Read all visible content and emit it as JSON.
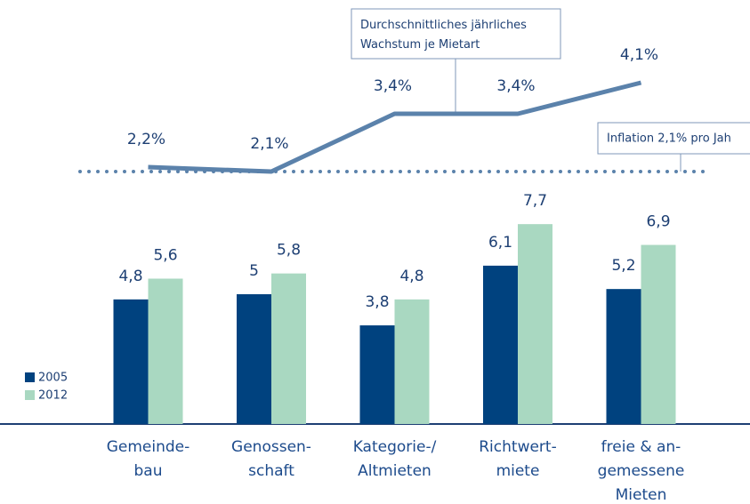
{
  "chart_data": {
    "type": "bar",
    "categories": [
      "Gemeinde-\nbau",
      "Genossen-\nschaft",
      "Kategorie-/\nAltmieten",
      "Richtwert-\nmiete",
      "freie & an-\ngemessene\nMieten"
    ],
    "series": [
      {
        "name": "2005",
        "color": "#00427f",
        "values": [
          4.8,
          5,
          3.8,
          6.1,
          5.2
        ],
        "value_labels": [
          "4,8",
          "5",
          "3,8",
          "6,1",
          "5,2"
        ]
      },
      {
        "name": "2012",
        "color": "#a9d8c1",
        "values": [
          5.6,
          5.8,
          4.8,
          7.7,
          6.9
        ],
        "value_labels": [
          "5,6",
          "5,8",
          "4,8",
          "7,7",
          "6,9"
        ]
      }
    ],
    "growth": {
      "name": "Durchschnittliches jährliches\nWachstum je Mietart",
      "color": "#5b82ab",
      "values": [
        2.2,
        2.1,
        3.4,
        3.4,
        4.1
      ],
      "value_labels": [
        "2,2%",
        "2,1%",
        "3,4%",
        "3,4%",
        "4,1%"
      ]
    },
    "inflation": {
      "label": "Inflation 2,1% pro Jah",
      "value": 2.1
    }
  }
}
